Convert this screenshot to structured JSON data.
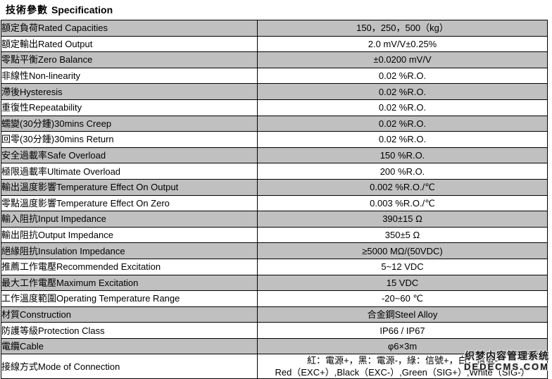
{
  "title": {
    "zh": "技術參數",
    "en": "Specification"
  },
  "table": {
    "rows": [
      {
        "label": "額定負荷Rated Capacities",
        "value": "150，250，500（kg）"
      },
      {
        "label": "額定輸出Rated Output",
        "value": "2.0 mV/V±0.25%"
      },
      {
        "label": "零點平衡Zero Balance",
        "value": "±0.0200 mV/V"
      },
      {
        "label": "非線性Non-linearity",
        "value": "0.02 %R.O."
      },
      {
        "label": "滯後Hysteresis",
        "value": "0.02 %R.O."
      },
      {
        "label": "重復性Repeatability",
        "value": "0.02 %R.O."
      },
      {
        "label": "蠕變(30分鍾)30mins Creep",
        "value": "0.02 %R.O."
      },
      {
        "label": "回零(30分鍾)30mins Return",
        "value": "0.02 %R.O."
      },
      {
        "label": "安全過載率Safe Overload",
        "value": "150 %R.O."
      },
      {
        "label": "極限過載率Ultimate Overload",
        "value": "200 %R.O."
      },
      {
        "label": "輸出溫度影響Temperature Effect On Output",
        "value": "0.002 %R.O./℃"
      },
      {
        "label": "零點溫度影響Temperature Effect On Zero",
        "value": "0.003 %R.O./℃"
      },
      {
        "label": "輸入阻抗Input Impedance",
        "value": "390±15 Ω"
      },
      {
        "label": "輸出阻抗Output Impedance",
        "value": "350±5 Ω"
      },
      {
        "label": "絕緣阻抗Insulation Impedance",
        "value": "≥5000 MΩ/(50VDC)"
      },
      {
        "label": "推薦工作電壓Recommended Excitation",
        "value": "5~12 VDC"
      },
      {
        "label": "最大工作電壓Maximum Excitation",
        "value": "15 VDC"
      },
      {
        "label": "工作溫度範圍Operating Temperature Range",
        "value": "-20~60 ℃"
      },
      {
        "label": "材質Construction",
        "value": "合金鋼Steel Alloy"
      },
      {
        "label": "防護等級Protection Class",
        "value": "IP66 / IP67"
      },
      {
        "label": "電纜Cable",
        "value": "φ6×3m"
      },
      {
        "label": "接線方式Mode of Connection",
        "value": "紅：電源+，黑：電源-，綠：信號+，白：信號-",
        "value2": "Red（EXC+）,Black（EXC-）,Green（SIG+）,White（SIG-）"
      }
    ]
  },
  "watermark": {
    "line1": "织梦内容管理系统",
    "line2": "DEDECMS.COM"
  },
  "colors": {
    "row_shaded": "#c0c0c0",
    "row_plain": "#ffffff",
    "border": "#000000"
  }
}
